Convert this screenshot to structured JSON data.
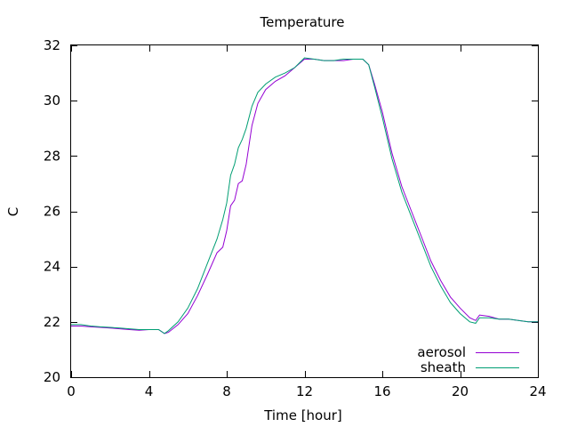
{
  "chart_data": {
    "type": "line",
    "title": "Temperature",
    "xlabel": "Time [hour]",
    "ylabel": "C",
    "xlim": [
      0,
      24
    ],
    "ylim": [
      20,
      32
    ],
    "xticks": [
      0,
      4,
      8,
      12,
      16,
      20,
      24
    ],
    "yticks": [
      20,
      22,
      24,
      26,
      28,
      30,
      32
    ],
    "grid": false,
    "legend_position": "bottom-right",
    "series": [
      {
        "name": "aerosol",
        "color": "#9400d3",
        "x": [
          0,
          0.5,
          1,
          1.5,
          2,
          2.5,
          3,
          3.5,
          4,
          4.5,
          4.8,
          5.0,
          5.5,
          6.0,
          6.5,
          7.0,
          7.5,
          7.8,
          8.0,
          8.2,
          8.4,
          8.6,
          8.8,
          9.0,
          9.3,
          9.6,
          10.0,
          10.5,
          11.0,
          11.5,
          12.0,
          12.5,
          13.0,
          13.5,
          14.0,
          14.5,
          15.0,
          15.3,
          15.6,
          16.0,
          16.5,
          17.0,
          17.5,
          18.0,
          18.5,
          19.0,
          19.5,
          20.0,
          20.5,
          20.8,
          21.0,
          21.5,
          22.0,
          22.5,
          23.0,
          23.5,
          24.0
        ],
        "y": [
          21.85,
          21.85,
          21.82,
          21.8,
          21.78,
          21.75,
          21.72,
          21.7,
          21.72,
          21.72,
          21.58,
          21.62,
          21.9,
          22.3,
          22.95,
          23.7,
          24.5,
          24.7,
          25.3,
          26.2,
          26.4,
          27.0,
          27.1,
          27.7,
          29.1,
          29.9,
          30.4,
          30.7,
          30.9,
          31.2,
          31.5,
          31.5,
          31.45,
          31.45,
          31.45,
          31.5,
          31.5,
          31.3,
          30.6,
          29.6,
          28.1,
          26.9,
          26.0,
          25.1,
          24.2,
          23.5,
          22.9,
          22.5,
          22.15,
          22.05,
          22.25,
          22.2,
          22.1,
          22.1,
          22.05,
          22.0,
          22.0
        ]
      },
      {
        "name": "sheath",
        "color": "#009e73",
        "x": [
          0,
          0.5,
          1,
          1.5,
          2,
          2.5,
          3,
          3.5,
          4,
          4.5,
          4.8,
          5.0,
          5.5,
          6.0,
          6.5,
          7.0,
          7.5,
          7.8,
          8.0,
          8.2,
          8.4,
          8.6,
          8.8,
          9.0,
          9.3,
          9.6,
          10.0,
          10.5,
          11.0,
          11.5,
          12.0,
          12.5,
          13.0,
          13.5,
          14.0,
          14.5,
          15.0,
          15.3,
          15.6,
          16.0,
          16.5,
          17.0,
          17.5,
          18.0,
          18.5,
          19.0,
          19.5,
          20.0,
          20.5,
          20.8,
          21.0,
          21.5,
          22.0,
          22.5,
          23.0,
          23.5,
          24.0
        ],
        "y": [
          21.9,
          21.9,
          21.85,
          21.82,
          21.8,
          21.78,
          21.75,
          21.72,
          21.72,
          21.72,
          21.58,
          21.68,
          22.0,
          22.5,
          23.2,
          24.1,
          25.0,
          25.7,
          26.3,
          27.3,
          27.7,
          28.3,
          28.6,
          29.0,
          29.8,
          30.3,
          30.6,
          30.85,
          31.0,
          31.2,
          31.55,
          31.5,
          31.45,
          31.45,
          31.5,
          31.5,
          31.5,
          31.3,
          30.5,
          29.4,
          27.9,
          26.7,
          25.8,
          24.9,
          24.0,
          23.3,
          22.7,
          22.3,
          22.0,
          21.95,
          22.15,
          22.15,
          22.1,
          22.1,
          22.05,
          22.0,
          22.0
        ]
      }
    ]
  }
}
